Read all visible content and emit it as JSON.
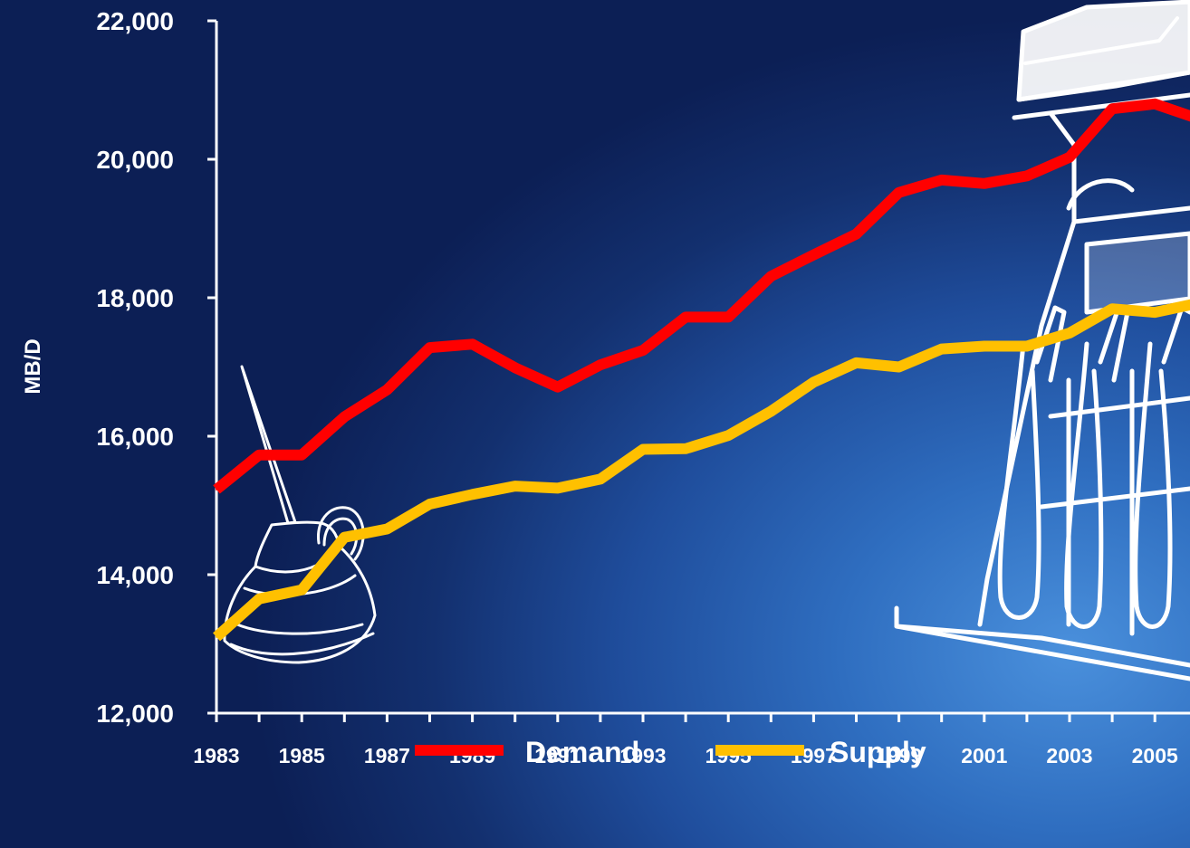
{
  "chart_data": {
    "type": "line",
    "title": "",
    "xlabel": "",
    "ylabel": "MB/D",
    "x": [
      1983,
      1984,
      1985,
      1986,
      1987,
      1988,
      1989,
      1990,
      1991,
      1992,
      1993,
      1994,
      1995,
      1996,
      1997,
      1998,
      1999,
      2000,
      2001,
      2002,
      2003,
      2004,
      2005,
      2006
    ],
    "x_tick_labels": [
      "1983",
      "1985",
      "1987",
      "1989",
      "1991",
      "1993",
      "1995",
      "1997",
      "1999",
      "2001",
      "2003",
      "2005"
    ],
    "y_tick_labels": [
      "12,000",
      "14,000",
      "16,000",
      "18,000",
      "20,000",
      "22,000"
    ],
    "y_ticks": [
      12000,
      14000,
      16000,
      18000,
      20000,
      22000
    ],
    "ylim": [
      12000,
      22000
    ],
    "grid": false,
    "legend_position": "bottom-center",
    "series": [
      {
        "name": "Demand",
        "color": "#ff0000",
        "values": [
          15230,
          15730,
          15730,
          16280,
          16670,
          17280,
          17330,
          16990,
          16710,
          17030,
          17240,
          17720,
          17720,
          18310,
          18620,
          18920,
          19520,
          19700,
          19650,
          19760,
          20030,
          20730,
          20800,
          20590
        ]
      },
      {
        "name": "Supply",
        "color": "#ffc000",
        "values": [
          13100,
          13650,
          13780,
          14540,
          14660,
          15020,
          15160,
          15280,
          15250,
          15380,
          15810,
          15820,
          16010,
          16360,
          16780,
          17060,
          17000,
          17260,
          17300,
          17300,
          17490,
          17840,
          17790,
          17920
        ]
      }
    ]
  },
  "decorations": {
    "left_image": "oil-can-icon",
    "right_image": "gas-pump-icon"
  }
}
